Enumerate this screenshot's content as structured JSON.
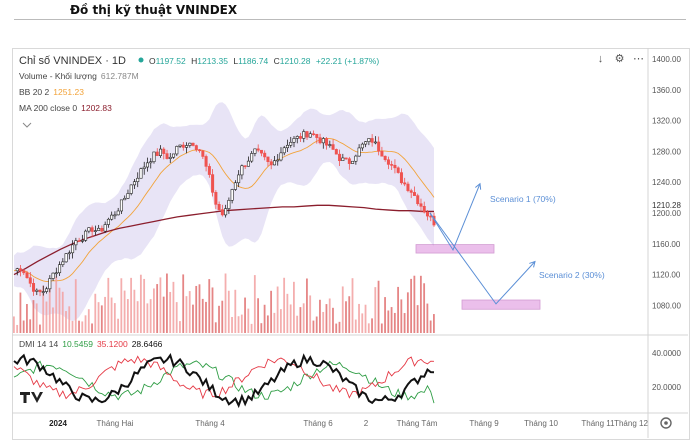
{
  "header": {
    "title": "Đồ thị kỹ thuật VNINDEX"
  },
  "legend": {
    "symbol": "Chỉ số VNINDEX · 1D",
    "o_label": "O",
    "o": "1197.52",
    "h_label": "H",
    "h": "1213.35",
    "l_label": "L",
    "l": "1186.74",
    "c_label": "C",
    "c": "1210.28",
    "chg": "+22.21 (+1.87%)",
    "volume_label": "Volume - Khối lượng",
    "volume_value": "612.787M",
    "bb_label": "BB 20 2",
    "bb_value": "1251.23",
    "ma_label": "MA 200 close 0",
    "ma_value": "1202.83",
    "dmi_label": "DMI 14 14",
    "dmi_plus": "10.5459",
    "dmi_minus": "35.1200",
    "adx": "28.6466"
  },
  "toolbar": {
    "down": "↓",
    "settings": "⚙",
    "more": "⋯"
  },
  "colors": {
    "up": "#26a69a",
    "down": "#ef5350",
    "bb": "#7e57c2",
    "bb_mid": "#f2a33a",
    "ma": "#8b1e2d",
    "scenario": "#5b8fd6",
    "zone": "#e3a5e3",
    "dmi_plus": "#2e9d44",
    "dmi_minus": "#e53945",
    "adx": "#111111"
  },
  "chart_data": {
    "type": "candlestick",
    "title": "Chỉ số VNINDEX · 1D",
    "price_axis": {
      "ticks": [
        "1400.00",
        "1360.00",
        "1320.00",
        "1280.00",
        "1240.00",
        "1200.00",
        "1160.00",
        "1120.00",
        "1080.00"
      ],
      "ylim": [
        1040,
        1410
      ],
      "last_price": "1210.28"
    },
    "x_axis": {
      "ticks": [
        "2024",
        "Tháng Hai",
        "Tháng 4",
        "Tháng 6",
        "2",
        "Tháng Tám",
        "Tháng 9",
        "Tháng 10",
        "Tháng 11",
        "Tháng 12"
      ]
    },
    "close_path": [
      1125,
      1130,
      1110,
      1095,
      1100,
      1120,
      1135,
      1150,
      1165,
      1170,
      1180,
      1175,
      1190,
      1200,
      1215,
      1235,
      1250,
      1265,
      1275,
      1280,
      1270,
      1285,
      1290,
      1292,
      1280,
      1250,
      1210,
      1195,
      1230,
      1255,
      1268,
      1280,
      1272,
      1260,
      1275,
      1290,
      1295,
      1300,
      1305,
      1298,
      1290,
      1282,
      1270,
      1265,
      1278,
      1290,
      1295,
      1282,
      1270,
      1255,
      1240,
      1230,
      1215,
      1200,
      1188
    ],
    "ma200": [
      1120,
      1128,
      1137,
      1145,
      1153,
      1160,
      1166,
      1171,
      1176,
      1180,
      1183,
      1186,
      1189,
      1192,
      1195,
      1197,
      1199,
      1201,
      1203,
      1204,
      1205,
      1206,
      1207,
      1208,
      1208,
      1209,
      1210,
      1210,
      1209,
      1208,
      1207,
      1205,
      1204,
      1203,
      1203,
      1202,
      1202
    ],
    "scenarios": [
      {
        "name": "Scenario 1 (70%)",
        "path": [
          1200,
          1152,
          1238
        ]
      },
      {
        "name": "Scenario 2 (30%)",
        "path": [
          1200,
          1082,
          1137
        ]
      }
    ],
    "zones": [
      {
        "low": 1148,
        "high": 1159
      },
      {
        "low": 1075,
        "high": 1087
      }
    ],
    "dmi": {
      "ticks": [
        "40.0000",
        "20.0000"
      ],
      "series": [
        {
          "name": "+DI",
          "last": 10.5459
        },
        {
          "name": "-DI",
          "last": 35.12
        },
        {
          "name": "ADX",
          "last": 28.6466
        }
      ]
    }
  }
}
